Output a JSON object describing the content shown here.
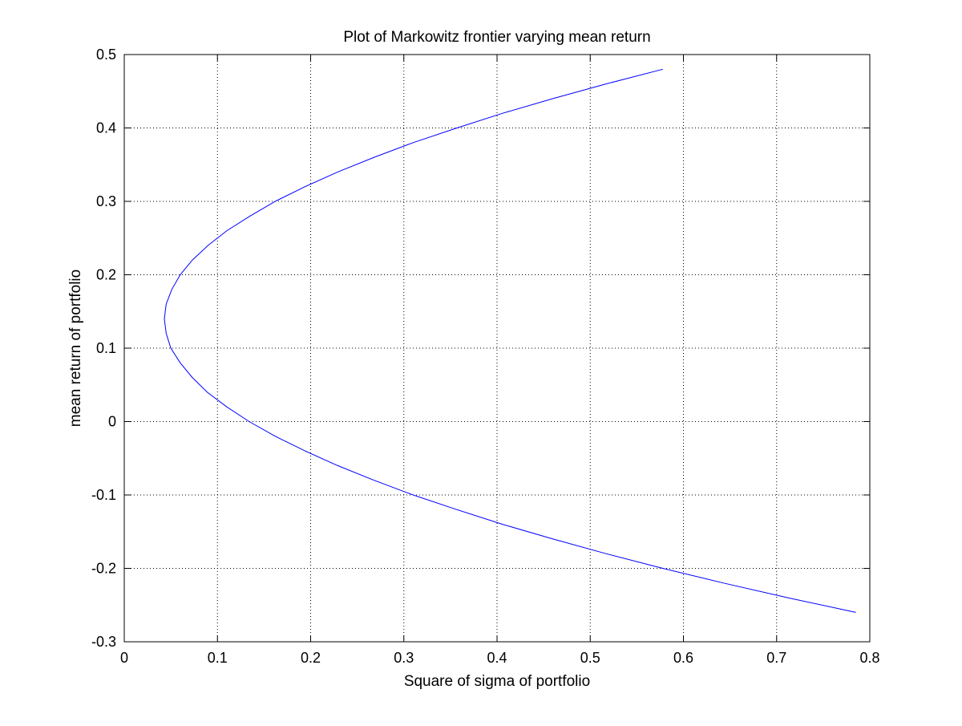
{
  "chart_data": {
    "type": "line",
    "title": "Plot of Markowitz frontier varying mean return",
    "xlabel": "Square of sigma of portfolio",
    "ylabel": "mean return of portfolio",
    "xlim": [
      0,
      0.8
    ],
    "ylim": [
      -0.3,
      0.5
    ],
    "xticks": [
      0,
      0.1,
      0.2,
      0.3,
      0.4,
      0.5,
      0.6,
      0.7,
      0.8
    ],
    "xtick_labels": [
      "0",
      "0.1",
      "0.2",
      "0.3",
      "0.4",
      "0.5",
      "0.6",
      "0.7",
      "0.8"
    ],
    "yticks": [
      -0.3,
      -0.2,
      -0.1,
      0,
      0.1,
      0.2,
      0.3,
      0.4,
      0.5
    ],
    "ytick_labels": [
      "-0.3",
      "-0.2",
      "-0.1",
      "0",
      "0.1",
      "0.2",
      "0.3",
      "0.4",
      "0.5"
    ],
    "grid": true,
    "line_color": "#0000ff",
    "series": [
      {
        "x": [
          0.578,
          0.517,
          0.46,
          0.406,
          0.357,
          0.31,
          0.268,
          0.229,
          0.194,
          0.162,
          0.135,
          0.11,
          0.09,
          0.073,
          0.06,
          0.051,
          0.045,
          0.043,
          0.045,
          0.05,
          0.06,
          0.073,
          0.089,
          0.11,
          0.134,
          0.162,
          0.194,
          0.229,
          0.268,
          0.31,
          0.357,
          0.406,
          0.46,
          0.517,
          0.578,
          0.643,
          0.712,
          0.785
        ],
        "x_note_removed": true,
        "y": [
          0.48,
          0.46,
          0.44,
          0.42,
          0.4,
          0.38,
          0.36,
          0.34,
          0.32,
          0.3,
          0.28,
          0.26,
          0.24,
          0.22,
          0.2,
          0.18,
          0.16,
          0.14,
          0.12,
          0.1,
          0.08,
          0.06,
          0.04,
          0.02,
          0.0,
          -0.02,
          -0.04,
          -0.06,
          -0.08,
          -0.1,
          -0.12,
          -0.14,
          -0.16,
          -0.18,
          -0.2,
          -0.22,
          -0.24,
          -0.26
        ]
      }
    ]
  }
}
